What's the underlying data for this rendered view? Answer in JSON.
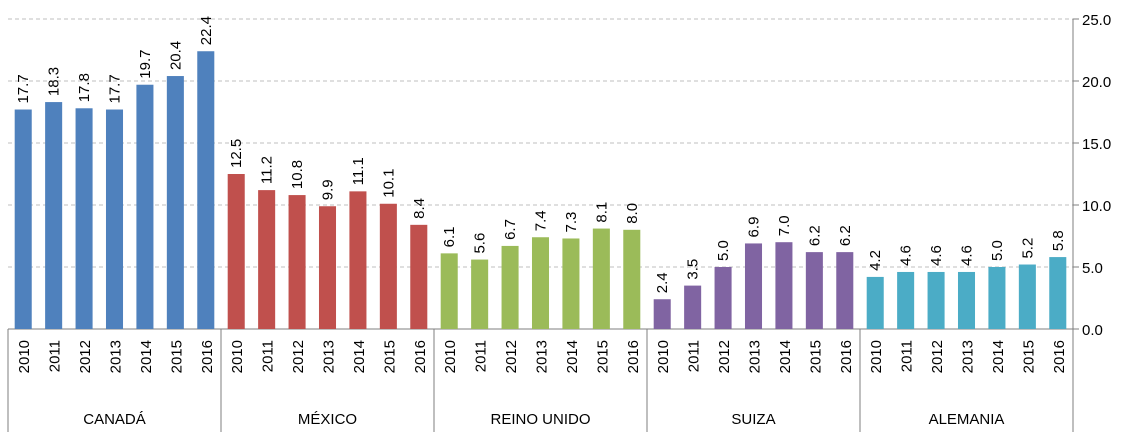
{
  "chart_data": {
    "type": "bar",
    "categories": [
      "2010",
      "2011",
      "2012",
      "2013",
      "2014",
      "2015",
      "2016"
    ],
    "series": [
      {
        "name": "CANADÁ",
        "color": "#4f81bd",
        "values": [
          17.7,
          18.3,
          17.8,
          17.7,
          19.7,
          20.4,
          22.4
        ],
        "value_labels": [
          "17.7",
          "18.3",
          "17.8",
          "17.7",
          "19.7",
          "20.4",
          "22.4"
        ]
      },
      {
        "name": "MÉXICO",
        "color": "#c0504d",
        "values": [
          12.5,
          11.2,
          10.8,
          9.9,
          11.1,
          10.1,
          8.4
        ],
        "value_labels": [
          "12.5",
          "11.2",
          "10.8",
          "9.9",
          "11.1",
          "10.1",
          "8.4"
        ]
      },
      {
        "name": "REINO UNIDO",
        "color": "#9bbb59",
        "values": [
          6.1,
          5.6,
          6.7,
          7.4,
          7.3,
          8.1,
          8.0
        ],
        "value_labels": [
          "6.1",
          "5.6",
          "6.7",
          "7.4",
          "7.3",
          "8.1",
          "8.0"
        ]
      },
      {
        "name": "SUIZA",
        "color": "#8064a2",
        "values": [
          2.4,
          3.5,
          5.0,
          6.9,
          7.0,
          6.2,
          6.2
        ],
        "value_labels": [
          "2.4",
          "3.5",
          "5.0",
          "6.9",
          "7.0",
          "6.2",
          "6.2"
        ]
      },
      {
        "name": "ALEMANIA",
        "color": "#4bacc6",
        "values": [
          4.2,
          4.6,
          4.6,
          4.6,
          5.0,
          5.2,
          5.8
        ],
        "value_labels": [
          "4.2",
          "4.6",
          "4.6",
          "4.6",
          "5.0",
          "5.2",
          "5.8"
        ]
      }
    ],
    "ylim": [
      0,
      25
    ],
    "yticks": [
      {
        "value": 0,
        "label": "0.0"
      },
      {
        "value": 5,
        "label": "5.0"
      },
      {
        "value": 10,
        "label": "10.0"
      },
      {
        "value": 15,
        "label": "15.0"
      },
      {
        "value": 20,
        "label": "20.0"
      },
      {
        "value": 25,
        "label": "25.0"
      }
    ],
    "grid": true
  }
}
